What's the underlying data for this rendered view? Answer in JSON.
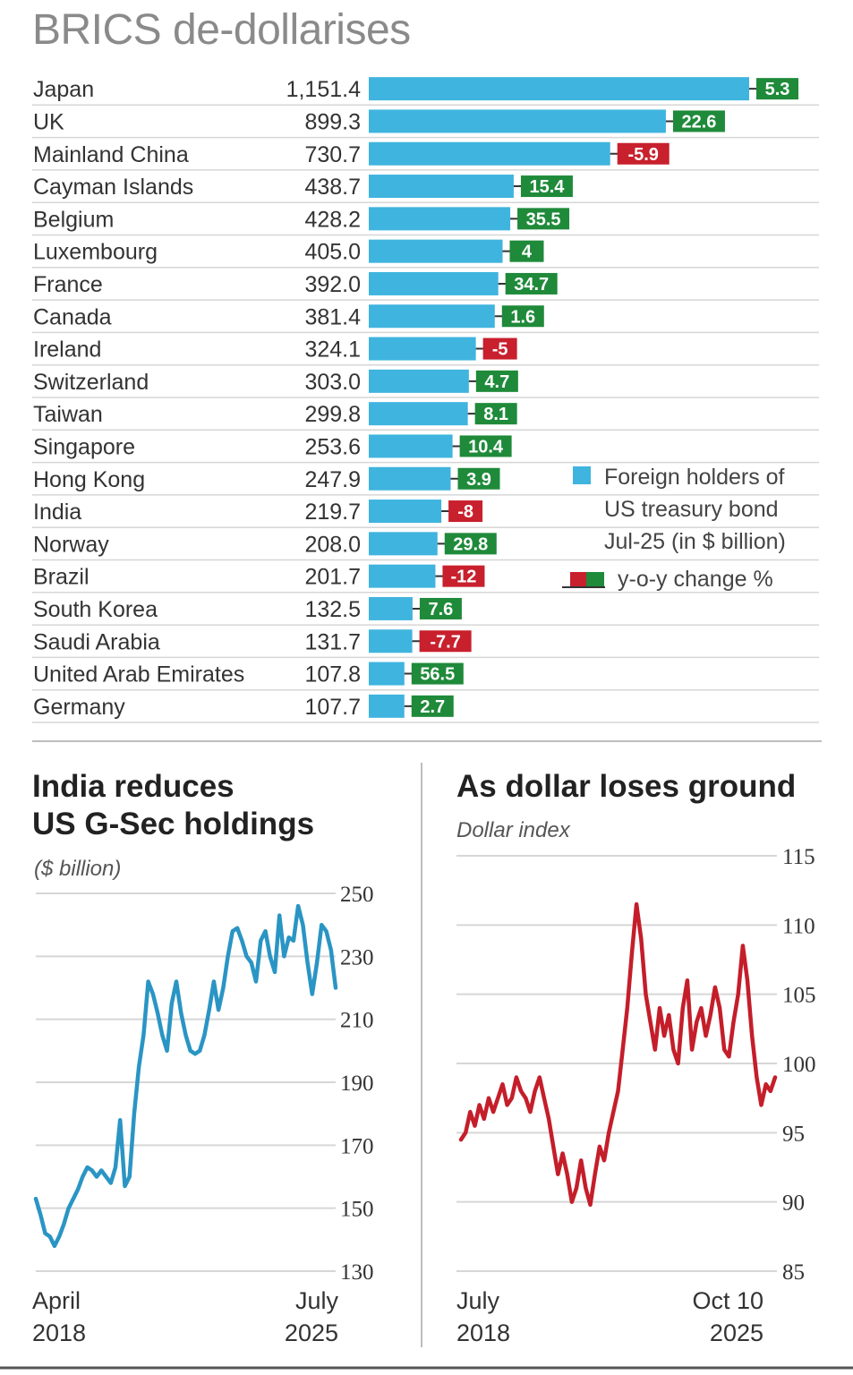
{
  "title": "BRICS de-dollarises",
  "legend": {
    "holders_lines": [
      "Foreign holders of",
      "US treasury bond",
      "Jul-25 (in $ billion)"
    ],
    "change_label": "y-o-y change %"
  },
  "colors": {
    "bar": "#3fb4de",
    "positive": "#1f8a3a",
    "negative": "#c8202d",
    "india_line": "#2a95c4",
    "dollar_line": "#c41e2a",
    "grid": "#d6d6d6"
  },
  "chart_data": [
    {
      "type": "bar",
      "title": "BRICS de-dollarises",
      "categories": [
        "Japan",
        "UK",
        "Mainland China",
        "Cayman Islands",
        "Belgium",
        "Luxembourg",
        "France",
        "Canada",
        "Ireland",
        "Switzerland",
        "Taiwan",
        "Singapore",
        "Hong Kong",
        "India",
        "Norway",
        "Brazil",
        "South Korea",
        "Saudi Arabia",
        "United Arab Emirates",
        "Germany"
      ],
      "value_labels": [
        "1,151.4",
        "899.3",
        "730.7",
        "438.7",
        "428.2",
        "405.0",
        "392.0",
        "381.4",
        "324.1",
        "303.0",
        "299.8",
        "253.6",
        "247.9",
        "219.7",
        "208.0",
        "201.7",
        "132.5",
        "131.7",
        "107.8",
        "107.7"
      ],
      "values": [
        1151.4,
        899.3,
        730.7,
        438.7,
        428.2,
        405.0,
        392.0,
        381.4,
        324.1,
        303.0,
        299.8,
        253.6,
        247.9,
        219.7,
        208.0,
        201.7,
        132.5,
        131.7,
        107.8,
        107.7
      ],
      "change_labels": [
        "5.3",
        "22.6",
        "-5.9",
        "15.4",
        "35.5",
        "4",
        "34.7",
        "1.6",
        "-5",
        "4.7",
        "8.1",
        "10.4",
        "3.9",
        "-8",
        "29.8",
        "-12",
        "7.6",
        "-7.7",
        "56.5",
        "2.7"
      ],
      "changes": [
        5.3,
        22.6,
        -5.9,
        15.4,
        35.5,
        4,
        34.7,
        1.6,
        -5,
        4.7,
        8.1,
        10.4,
        3.9,
        -8,
        29.8,
        -12,
        7.6,
        -7.7,
        56.5,
        2.7
      ],
      "series": [
        {
          "name": "Foreign holders of US treasury bond Jul-25 (in $ billion)"
        },
        {
          "name": "y-o-y change %"
        }
      ]
    },
    {
      "type": "line",
      "title": "India reduces US G-Sec holdings",
      "ylabel": "($ billion)",
      "ylim": [
        130,
        250
      ],
      "yticks": [
        "250",
        "230",
        "210",
        "190",
        "170",
        "150",
        "130"
      ],
      "xstart": [
        "April",
        "2018"
      ],
      "xend": [
        "July",
        "2025"
      ],
      "values": [
        153,
        148,
        142,
        141,
        138,
        141,
        145,
        150,
        153,
        156,
        160,
        163,
        162,
        160,
        162,
        160,
        158,
        163,
        178,
        157,
        160,
        180,
        195,
        205,
        222,
        218,
        212,
        205,
        200,
        215,
        222,
        212,
        205,
        200,
        199,
        200,
        205,
        213,
        222,
        213,
        220,
        230,
        238,
        239,
        235,
        230,
        228,
        222,
        235,
        238,
        230,
        225,
        243,
        230,
        236,
        235,
        246,
        240,
        228,
        218,
        228,
        240,
        238,
        232,
        220
      ]
    },
    {
      "type": "line",
      "title": "As dollar loses ground",
      "ylabel": "Dollar index",
      "ylim": [
        85,
        115
      ],
      "yticks": [
        "115",
        "110",
        "105",
        "100",
        "95",
        "90",
        "85"
      ],
      "xstart": [
        "July",
        "2018"
      ],
      "xend": [
        "Oct 10",
        "2025"
      ],
      "values": [
        94.5,
        95,
        96.5,
        95.5,
        97,
        96,
        97.5,
        96.5,
        97.5,
        98.5,
        97,
        97.5,
        99,
        98,
        97.5,
        96.5,
        98,
        99,
        97.5,
        96,
        94,
        92,
        93.5,
        92,
        90,
        91,
        93,
        91,
        89.8,
        92,
        94,
        93,
        95,
        96.5,
        98,
        101,
        104,
        108,
        111.5,
        109,
        105,
        103,
        101,
        104,
        102,
        103.5,
        101,
        100,
        104,
        106,
        101,
        103,
        104,
        102,
        103.5,
        105.5,
        104,
        101,
        100.5,
        103,
        105,
        108.5,
        106,
        102,
        99,
        97,
        98.5,
        98,
        99
      ]
    }
  ]
}
